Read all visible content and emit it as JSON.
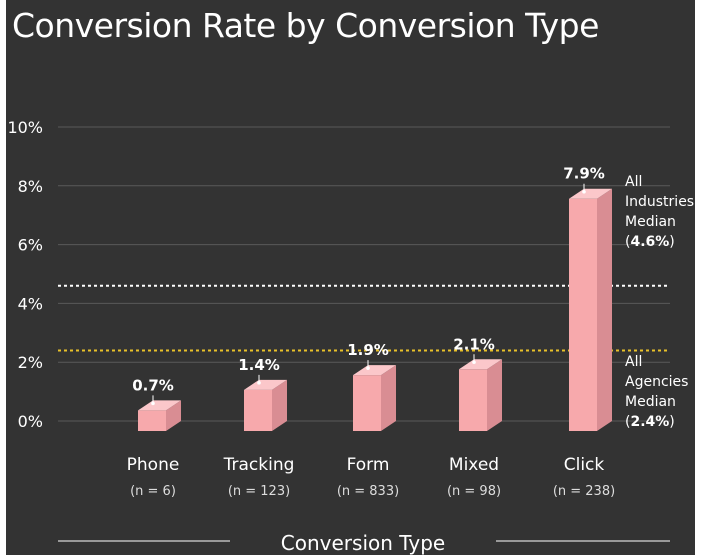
{
  "chart_data": {
    "type": "bar",
    "title": "Conversion Rate by Conversion Type",
    "xlabel": "Conversion Type",
    "ylabel": "",
    "categories": [
      "Phone",
      "Tracking",
      "Form",
      "Mixed",
      "Click"
    ],
    "category_notes": [
      "(n = 6)",
      "(n = 123)",
      "(n = 833)",
      "(n = 98)",
      "(n = 238)"
    ],
    "values": [
      0.7,
      1.4,
      1.9,
      2.1,
      7.9
    ],
    "value_labels": [
      "0.7%",
      "1.4%",
      "1.9%",
      "2.1%",
      "7.9%"
    ],
    "ylim": [
      0,
      10
    ],
    "y_ticks": [
      0,
      2,
      4,
      6,
      8,
      10
    ],
    "y_tick_labels": [
      "0%",
      "2%",
      "4%",
      "6%",
      "8%",
      "10%"
    ],
    "grid": true,
    "bar_style": "3d",
    "reference_lines": [
      {
        "value": 4.6,
        "label_lines": [
          "All",
          "Industries",
          "Median"
        ],
        "value_label": "4.6%",
        "color": "#ffffff",
        "style": "dotted"
      },
      {
        "value": 2.4,
        "label_lines": [
          "All",
          "Agencies",
          "Median"
        ],
        "value_label": "2.4%",
        "color": "#e8c12a",
        "style": "dotted"
      }
    ]
  },
  "colors": {
    "background": "#333333",
    "bar_front": "#f7a9ac",
    "bar_side": "#d98d93",
    "bar_top": "#fbc7ca",
    "text": "#ffffff",
    "muted_text": "#dddddd",
    "grid": "#5a5a5a"
  }
}
